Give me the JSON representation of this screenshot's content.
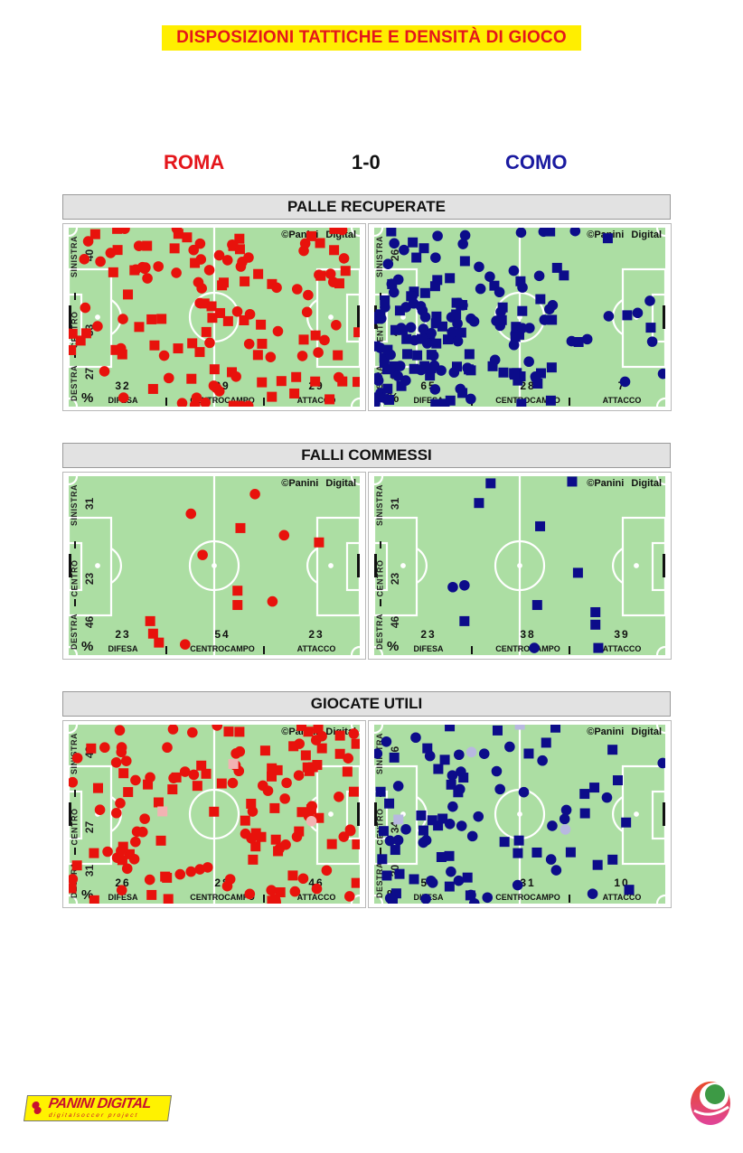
{
  "title": "DISPOSIZIONI TATTICHE E DENSITÀ DI GIOCO",
  "match": {
    "home": "ROMA",
    "score": "1-0",
    "away": "COMO"
  },
  "colors": {
    "home": "#e8120c",
    "away": "#0c0c8a",
    "home_faded": "#f2b3b3",
    "away_faded": "#b8b8e0",
    "pitch": "#acdea3",
    "title_bg": "#ffee00"
  },
  "labels": {
    "sinistra": "SINISTRA",
    "centro": "CENTRO",
    "destra": "DESTRA",
    "difesa": "DIFESA",
    "centrocampo": "CENTROCAMPO",
    "attacco": "ATTACCO",
    "percent": "%",
    "copyright": "©Panini Digital"
  },
  "logos": {
    "panini_main": "PANINI DIGITAL",
    "panini_sub": "digitalsoccer project"
  },
  "chart_data": [
    {
      "type": "scatter",
      "title": "PALLE RECUPERATE",
      "panels": [
        {
          "team": "ROMA",
          "side": {
            "sinistra": "40",
            "centro": "33",
            "destra": "27"
          },
          "zone": {
            "difesa": "32",
            "centrocampo": "39",
            "attacco": "29"
          },
          "generated_points": 135,
          "faded_points": 0
        },
        {
          "team": "COMO",
          "side": {
            "sinistra": "26",
            "centro": "41",
            "destra": "33"
          },
          "zone": {
            "difesa": "65",
            "centrocampo": "28",
            "attacco": "7"
          },
          "generated_points": 175,
          "faded_points": 0
        }
      ]
    },
    {
      "type": "scatter",
      "title": "FALLI COMMESSI",
      "panels": [
        {
          "team": "ROMA",
          "side": {
            "sinistra": "31",
            "centro": "23",
            "destra": "46"
          },
          "zone": {
            "difesa": "23",
            "centrocampo": "54",
            "attacco": "23"
          },
          "points": [
            [
              64,
              10,
              "c"
            ],
            [
              42,
              21,
              "c"
            ],
            [
              59,
              29,
              "s"
            ],
            [
              74,
              33,
              "c"
            ],
            [
              86,
              37,
              "s"
            ],
            [
              46,
              44,
              "c"
            ],
            [
              58,
              64,
              "s"
            ],
            [
              58,
              72,
              "s"
            ],
            [
              70,
              70,
              "c"
            ],
            [
              28,
              81,
              "s"
            ],
            [
              29,
              88,
              "s"
            ],
            [
              31,
              93,
              "s"
            ],
            [
              40,
              94,
              "c"
            ]
          ]
        },
        {
          "team": "COMO",
          "side": {
            "sinistra": "31",
            "centro": "23",
            "destra": "46"
          },
          "zone": {
            "difesa": "23",
            "centrocampo": "38",
            "attacco": "39"
          },
          "points": [
            [
              40,
              4,
              "s"
            ],
            [
              68,
              3,
              "s"
            ],
            [
              36,
              15,
              "s"
            ],
            [
              57,
              28,
              "s"
            ],
            [
              70,
              54,
              "s"
            ],
            [
              27,
              62,
              "c"
            ],
            [
              31,
              61,
              "c"
            ],
            [
              56,
              72,
              "s"
            ],
            [
              31,
              81,
              "s"
            ],
            [
              76,
              76,
              "s"
            ],
            [
              76,
              83,
              "s"
            ],
            [
              55,
              96,
              "c"
            ],
            [
              77,
              96,
              "s"
            ]
          ]
        }
      ]
    },
    {
      "type": "scatter",
      "title": "GIOCATE UTILI",
      "panels": [
        {
          "team": "ROMA",
          "side": {
            "sinistra": "42",
            "centro": "27",
            "destra": "31"
          },
          "zone": {
            "difesa": "26",
            "centrocampo": "28",
            "attacco": "46"
          },
          "generated_points": 140,
          "faded_points": 3
        },
        {
          "team": "COMO",
          "side": {
            "sinistra": "36",
            "centro": "34",
            "destra": "30"
          },
          "zone": {
            "difesa": "59",
            "centrocampo": "31",
            "attacco": "10"
          },
          "generated_points": 90,
          "faded_points": 4
        }
      ]
    }
  ]
}
